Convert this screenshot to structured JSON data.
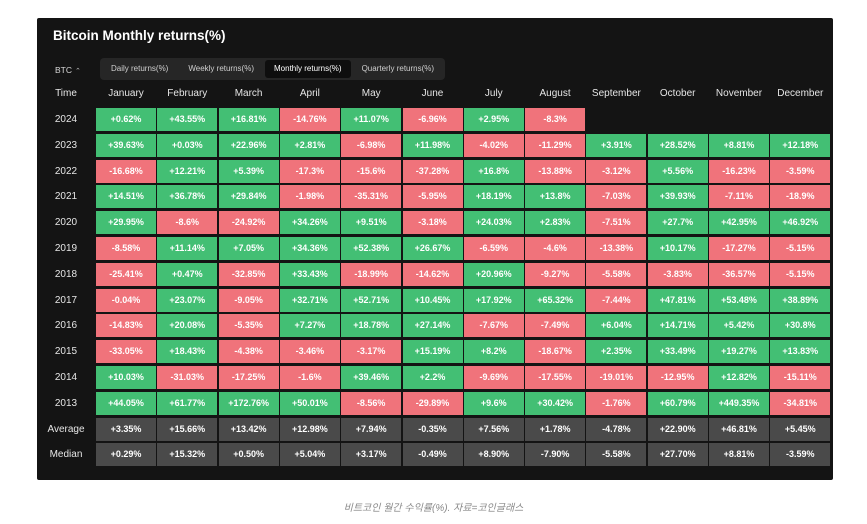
{
  "title": "Bitcoin Monthly returns(%)",
  "selector": {
    "value": "BTC",
    "icon": "chevron-updown-icon"
  },
  "tabs": [
    {
      "label": "Daily returns(%)",
      "active": false
    },
    {
      "label": "Weekly returns(%)",
      "active": false
    },
    {
      "label": "Monthly returns(%)",
      "active": true
    },
    {
      "label": "Quarterly returns(%)",
      "active": false
    }
  ],
  "caption": "비트코인 월간 수익률(%). 자료=코인글래스",
  "colors": {
    "positive": "#43bf74",
    "negative": "#f0737b",
    "stat": "#4a4a4a",
    "panel": "#141414"
  },
  "chart_data": {
    "type": "table",
    "title": "Bitcoin Monthly returns(%)",
    "row_header": "Time",
    "columns": [
      "January",
      "February",
      "March",
      "April",
      "May",
      "June",
      "July",
      "August",
      "September",
      "October",
      "November",
      "December"
    ],
    "rows": [
      {
        "label": "2024",
        "values": [
          "+0.62%",
          "+43.55%",
          "+16.81%",
          "-14.76%",
          "+11.07%",
          "-6.96%",
          "+2.95%",
          "-8.3%",
          null,
          null,
          null,
          null
        ]
      },
      {
        "label": "2023",
        "values": [
          "+39.63%",
          "+0.03%",
          "+22.96%",
          "+2.81%",
          "-6.98%",
          "+11.98%",
          "-4.02%",
          "-11.29%",
          "+3.91%",
          "+28.52%",
          "+8.81%",
          "+12.18%"
        ]
      },
      {
        "label": "2022",
        "values": [
          "-16.68%",
          "+12.21%",
          "+5.39%",
          "-17.3%",
          "-15.6%",
          "-37.28%",
          "+16.8%",
          "-13.88%",
          "-3.12%",
          "+5.56%",
          "-16.23%",
          "-3.59%"
        ]
      },
      {
        "label": "2021",
        "values": [
          "+14.51%",
          "+36.78%",
          "+29.84%",
          "-1.98%",
          "-35.31%",
          "-5.95%",
          "+18.19%",
          "+13.8%",
          "-7.03%",
          "+39.93%",
          "-7.11%",
          "-18.9%"
        ]
      },
      {
        "label": "2020",
        "values": [
          "+29.95%",
          "-8.6%",
          "-24.92%",
          "+34.26%",
          "+9.51%",
          "-3.18%",
          "+24.03%",
          "+2.83%",
          "-7.51%",
          "+27.7%",
          "+42.95%",
          "+46.92%"
        ]
      },
      {
        "label": "2019",
        "values": [
          "-8.58%",
          "+11.14%",
          "+7.05%",
          "+34.36%",
          "+52.38%",
          "+26.67%",
          "-6.59%",
          "-4.6%",
          "-13.38%",
          "+10.17%",
          "-17.27%",
          "-5.15%"
        ]
      },
      {
        "label": "2018",
        "values": [
          "-25.41%",
          "+0.47%",
          "-32.85%",
          "+33.43%",
          "-18.99%",
          "-14.62%",
          "+20.96%",
          "-9.27%",
          "-5.58%",
          "-3.83%",
          "-36.57%",
          "-5.15%"
        ]
      },
      {
        "label": "2017",
        "values": [
          "-0.04%",
          "+23.07%",
          "-9.05%",
          "+32.71%",
          "+52.71%",
          "+10.45%",
          "+17.92%",
          "+65.32%",
          "-7.44%",
          "+47.81%",
          "+53.48%",
          "+38.89%"
        ]
      },
      {
        "label": "2016",
        "values": [
          "-14.83%",
          "+20.08%",
          "-5.35%",
          "+7.27%",
          "+18.78%",
          "+27.14%",
          "-7.67%",
          "-7.49%",
          "+6.04%",
          "+14.71%",
          "+5.42%",
          "+30.8%"
        ]
      },
      {
        "label": "2015",
        "values": [
          "-33.05%",
          "+18.43%",
          "-4.38%",
          "-3.46%",
          "-3.17%",
          "+15.19%",
          "+8.2%",
          "-18.67%",
          "+2.35%",
          "+33.49%",
          "+19.27%",
          "+13.83%"
        ]
      },
      {
        "label": "2014",
        "values": [
          "+10.03%",
          "-31.03%",
          "-17.25%",
          "-1.6%",
          "+39.46%",
          "+2.2%",
          "-9.69%",
          "-17.55%",
          "-19.01%",
          "-12.95%",
          "+12.82%",
          "-15.11%"
        ]
      },
      {
        "label": "2013",
        "values": [
          "+44.05%",
          "+61.77%",
          "+172.76%",
          "+50.01%",
          "-8.56%",
          "-29.89%",
          "+9.6%",
          "+30.42%",
          "-1.76%",
          "+60.79%",
          "+449.35%",
          "-34.81%"
        ]
      }
    ],
    "summary_rows": [
      {
        "label": "Average",
        "values": [
          "+3.35%",
          "+15.66%",
          "+13.42%",
          "+12.98%",
          "+7.94%",
          "-0.35%",
          "+7.56%",
          "+1.78%",
          "-4.78%",
          "+22.90%",
          "+46.81%",
          "+5.45%"
        ]
      },
      {
        "label": "Median",
        "values": [
          "+0.29%",
          "+15.32%",
          "+0.50%",
          "+5.04%",
          "+3.17%",
          "-0.49%",
          "+8.90%",
          "-7.90%",
          "-5.58%",
          "+27.70%",
          "+8.81%",
          "-3.59%"
        ]
      }
    ]
  }
}
